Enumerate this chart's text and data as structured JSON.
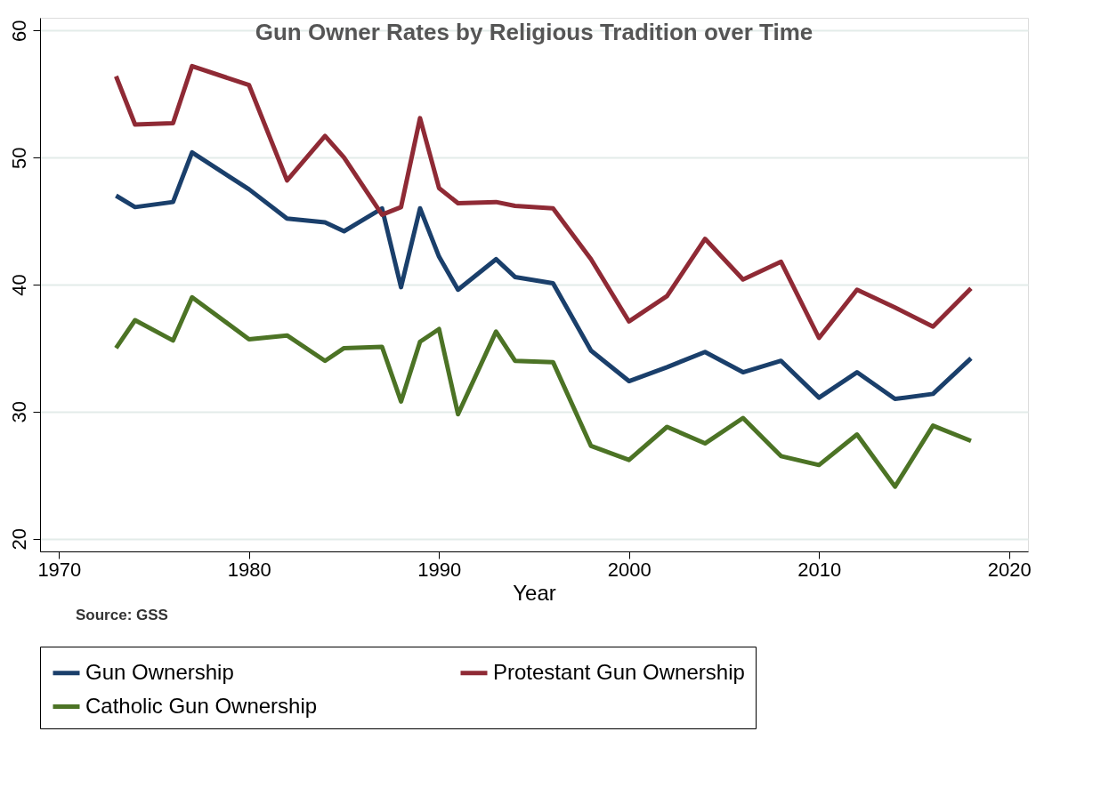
{
  "chart_data": {
    "type": "line",
    "title": "Gun Owner Rates by Religious Tradition over Time",
    "xlabel": "Year",
    "annotations": [
      "Source: GSS"
    ],
    "x": [
      1973,
      1974,
      1976,
      1977,
      1980,
      1982,
      1984,
      1985,
      1987,
      1988,
      1989,
      1990,
      1991,
      1993,
      1994,
      1996,
      1998,
      2000,
      2002,
      2004,
      2006,
      2008,
      2010,
      2012,
      2014,
      2016,
      2018
    ],
    "series": [
      {
        "name": "Gun Ownership",
        "color": "#1a3f6b",
        "values": [
          47.0,
          46.1,
          46.5,
          50.4,
          47.5,
          45.2,
          44.9,
          44.2,
          46.0,
          39.8,
          46.0,
          42.2,
          39.6,
          42.0,
          40.6,
          40.1,
          34.8,
          32.4,
          33.5,
          34.7,
          33.1,
          34.0,
          31.1,
          33.1,
          31.0,
          31.4,
          34.2
        ]
      },
      {
        "name": "Protestant Gun Ownership",
        "color": "#8f2a35",
        "values": [
          56.4,
          52.6,
          52.7,
          57.2,
          55.7,
          48.2,
          51.7,
          50.0,
          45.5,
          46.1,
          53.1,
          47.6,
          46.4,
          46.5,
          46.2,
          46.0,
          42.0,
          37.1,
          39.1,
          43.6,
          40.4,
          41.8,
          35.8,
          39.6,
          38.2,
          36.7,
          39.7
        ]
      },
      {
        "name": "Catholic Gun Ownership",
        "color": "#4c7325",
        "values": [
          35.0,
          37.2,
          35.6,
          39.0,
          35.7,
          36.0,
          34.0,
          35.0,
          35.1,
          30.8,
          35.5,
          36.5,
          29.8,
          36.3,
          34.0,
          33.9,
          27.3,
          26.2,
          28.8,
          27.5,
          29.5,
          26.5,
          25.8,
          28.2,
          24.1,
          28.9,
          27.7
        ]
      }
    ],
    "xlim": [
      1969,
      2021
    ],
    "xticks": [
      1970,
      1980,
      1990,
      2000,
      2010,
      2020
    ],
    "ylim": [
      19,
      61
    ],
    "yticks": [
      20,
      30,
      40,
      50,
      60
    ],
    "grid": "y",
    "legend": "bottom",
    "marker": "none",
    "line_style": "solid"
  }
}
